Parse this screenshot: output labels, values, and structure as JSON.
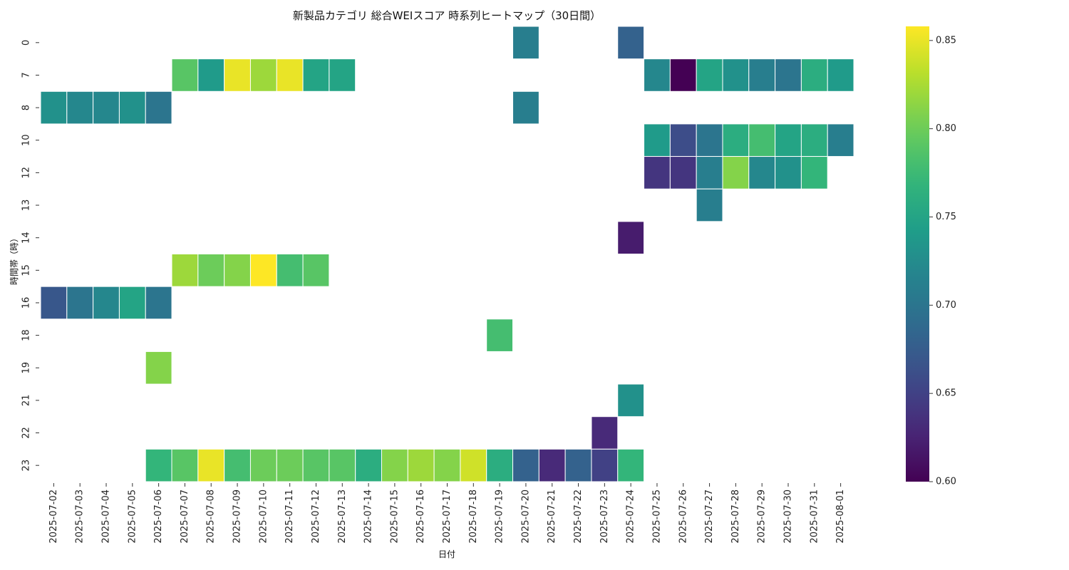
{
  "chart_data": {
    "type": "heatmap",
    "title": "新製品カテゴリ 総合WEIスコア 時系列ヒートマップ（30日間）",
    "xlabel": "日付",
    "ylabel": "時間帯（時）",
    "x_categories": [
      "2025-07-02",
      "2025-07-03",
      "2025-07-04",
      "2025-07-05",
      "2025-07-06",
      "2025-07-07",
      "2025-07-08",
      "2025-07-09",
      "2025-07-10",
      "2025-07-11",
      "2025-07-12",
      "2025-07-13",
      "2025-07-14",
      "2025-07-15",
      "2025-07-16",
      "2025-07-17",
      "2025-07-18",
      "2025-07-19",
      "2025-07-20",
      "2025-07-21",
      "2025-07-22",
      "2025-07-23",
      "2025-07-24",
      "2025-07-25",
      "2025-07-26",
      "2025-07-27",
      "2025-07-28",
      "2025-07-29",
      "2025-07-30",
      "2025-07-31",
      "2025-08-01"
    ],
    "y_categories": [
      "0",
      "7",
      "8",
      "10",
      "12",
      "13",
      "14",
      "15",
      "16",
      "18",
      "19",
      "21",
      "22",
      "23"
    ],
    "values": [
      [
        null,
        null,
        null,
        null,
        null,
        null,
        null,
        null,
        null,
        null,
        null,
        null,
        null,
        null,
        null,
        null,
        null,
        null,
        0.71,
        null,
        null,
        null,
        0.68,
        null,
        null,
        null,
        null,
        null,
        null,
        null,
        null
      ],
      [
        null,
        null,
        null,
        null,
        null,
        0.79,
        0.74,
        0.85,
        0.82,
        0.85,
        0.75,
        0.75,
        null,
        null,
        null,
        null,
        null,
        null,
        null,
        null,
        null,
        null,
        null,
        0.72,
        0.6,
        0.75,
        0.73,
        0.71,
        0.7,
        0.76,
        0.74
      ],
      [
        0.73,
        0.72,
        0.72,
        0.73,
        0.7,
        null,
        null,
        null,
        null,
        null,
        null,
        null,
        null,
        null,
        null,
        null,
        null,
        null,
        0.71,
        null,
        null,
        null,
        null,
        null,
        null,
        null,
        null,
        null,
        null,
        null,
        null
      ],
      [
        null,
        null,
        null,
        null,
        null,
        null,
        null,
        null,
        null,
        null,
        null,
        null,
        null,
        null,
        null,
        null,
        null,
        null,
        null,
        null,
        null,
        null,
        null,
        0.74,
        0.66,
        0.7,
        0.76,
        0.78,
        0.75,
        0.76,
        0.71
      ],
      [
        null,
        null,
        null,
        null,
        null,
        null,
        null,
        null,
        null,
        null,
        null,
        null,
        null,
        null,
        null,
        null,
        null,
        null,
        null,
        null,
        null,
        null,
        null,
        0.64,
        0.64,
        0.71,
        0.81,
        0.72,
        0.73,
        0.77,
        null
      ],
      [
        null,
        null,
        null,
        null,
        null,
        null,
        null,
        null,
        null,
        null,
        null,
        null,
        null,
        null,
        null,
        null,
        null,
        null,
        null,
        null,
        null,
        null,
        null,
        null,
        null,
        0.71,
        null,
        null,
        null,
        null,
        null
      ],
      [
        null,
        null,
        null,
        null,
        null,
        null,
        null,
        null,
        null,
        null,
        null,
        null,
        null,
        null,
        null,
        null,
        null,
        null,
        null,
        null,
        null,
        null,
        0.62,
        null,
        null,
        null,
        null,
        null,
        null,
        null,
        null
      ],
      [
        null,
        null,
        null,
        null,
        null,
        0.82,
        0.8,
        0.81,
        0.86,
        0.78,
        0.79,
        null,
        null,
        null,
        null,
        null,
        null,
        null,
        null,
        null,
        null,
        null,
        null,
        null,
        null,
        null,
        null,
        null,
        null,
        null,
        null
      ],
      [
        0.67,
        0.7,
        0.72,
        0.75,
        0.7,
        null,
        null,
        null,
        null,
        null,
        null,
        null,
        null,
        null,
        null,
        null,
        null,
        null,
        null,
        null,
        null,
        null,
        null,
        null,
        null,
        null,
        null,
        null,
        null,
        null,
        null
      ],
      [
        null,
        null,
        null,
        null,
        null,
        null,
        null,
        null,
        null,
        null,
        null,
        null,
        null,
        null,
        null,
        null,
        null,
        0.78,
        null,
        null,
        null,
        null,
        null,
        null,
        null,
        null,
        null,
        null,
        null,
        null,
        null
      ],
      [
        null,
        null,
        null,
        null,
        0.81,
        null,
        null,
        null,
        null,
        null,
        null,
        null,
        null,
        null,
        null,
        null,
        null,
        null,
        null,
        null,
        null,
        null,
        null,
        null,
        null,
        null,
        null,
        null,
        null,
        null,
        null
      ],
      [
        null,
        null,
        null,
        null,
        null,
        null,
        null,
        null,
        null,
        null,
        null,
        null,
        null,
        null,
        null,
        null,
        null,
        null,
        null,
        null,
        null,
        null,
        0.73,
        null,
        null,
        null,
        null,
        null,
        null,
        null,
        null
      ],
      [
        null,
        null,
        null,
        null,
        null,
        null,
        null,
        null,
        null,
        null,
        null,
        null,
        null,
        null,
        null,
        null,
        null,
        null,
        null,
        null,
        null,
        0.63,
        null,
        null,
        null,
        null,
        null,
        null,
        null,
        null,
        null
      ],
      [
        null,
        null,
        null,
        null,
        0.77,
        0.79,
        0.85,
        0.78,
        0.8,
        0.8,
        0.79,
        0.79,
        0.76,
        0.81,
        0.82,
        0.81,
        0.84,
        0.76,
        0.68,
        0.63,
        0.68,
        0.65,
        0.77,
        null,
        null,
        null,
        null,
        null,
        null,
        null,
        null
      ]
    ],
    "colormap": "viridis",
    "vmin": 0.6,
    "vmax": 0.858,
    "colorbar_ticks": [
      "0.60",
      "0.65",
      "0.70",
      "0.75",
      "0.80",
      "0.85"
    ],
    "grid": false,
    "legend": "colorbar-right"
  }
}
